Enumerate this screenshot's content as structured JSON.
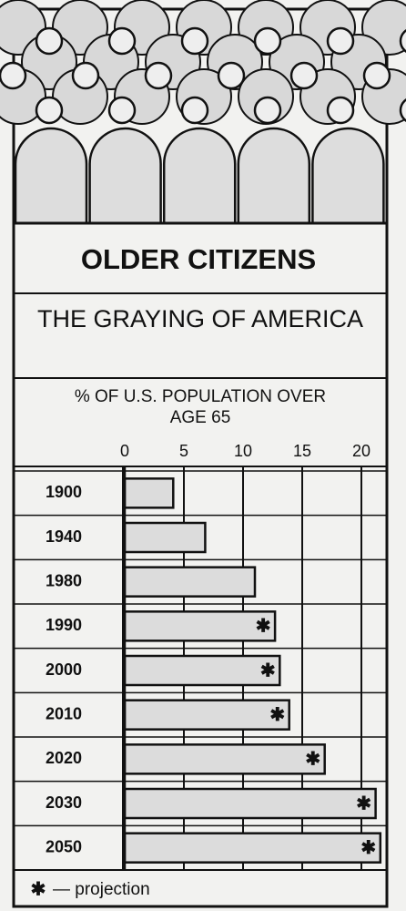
{
  "chart_data": {
    "type": "bar",
    "orientation": "horizontal",
    "title": "OLDER CITIZENS",
    "subtitle": "THE GRAYING OF AMERICA",
    "axis_title": "% OF U.S. POPULATION OVER AGE 65",
    "categories": [
      "1900",
      "1940",
      "1980",
      "1990",
      "2000",
      "2010",
      "2020",
      "2030",
      "2050"
    ],
    "values": [
      4.1,
      6.8,
      11.0,
      12.7,
      13.1,
      13.9,
      16.9,
      21.2,
      21.6
    ],
    "projected": [
      false,
      false,
      false,
      true,
      true,
      true,
      true,
      true,
      true
    ],
    "projection_symbol": "✱",
    "legend_label": "— projection",
    "color": "#dcdcdc",
    "xlim": [
      0,
      22
    ],
    "xticks": [
      0,
      5,
      10,
      15,
      20
    ],
    "grid": true
  }
}
